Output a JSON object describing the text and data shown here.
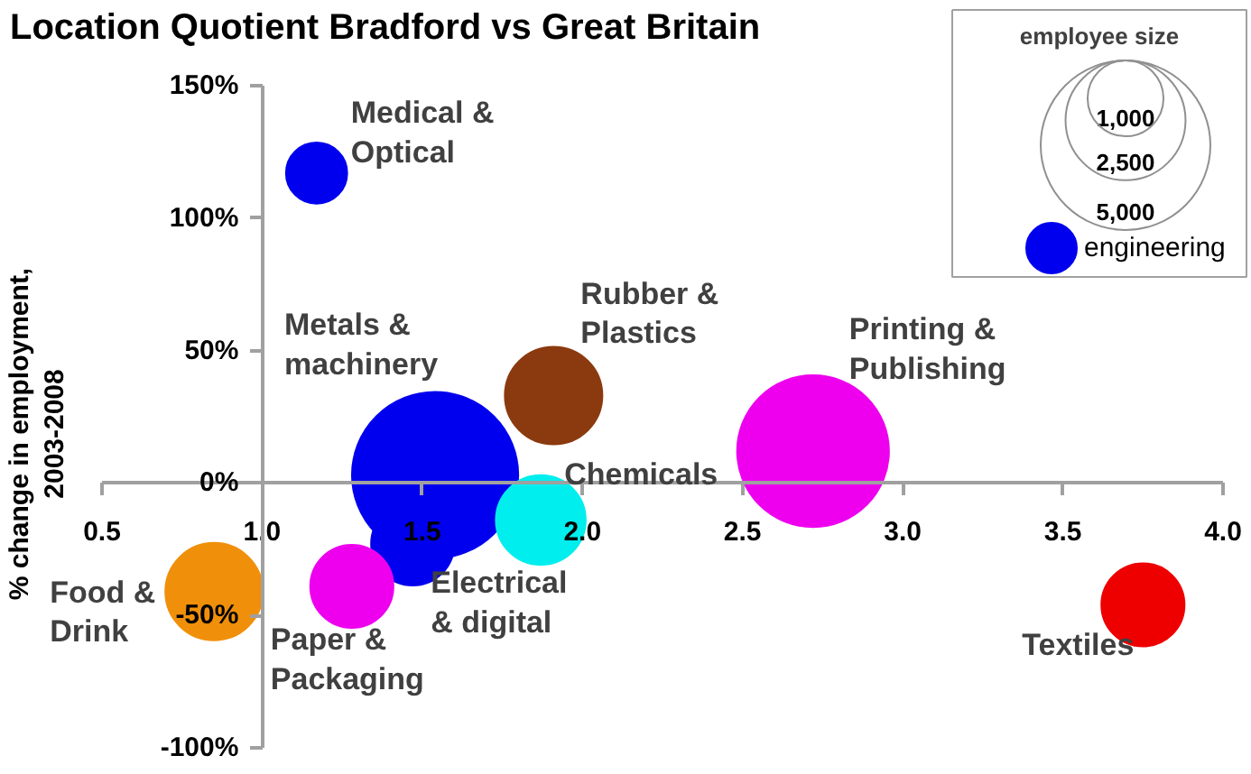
{
  "chart_data": {
    "type": "bubble",
    "title": "Location Quotient Bradford vs Great Britain",
    "ylabel": "% change in employment,\n2003-2008",
    "xlim": [
      0.5,
      4.0
    ],
    "xticks": [
      {
        "value": 0.5,
        "label": "0.5"
      },
      {
        "value": 1.0,
        "label": "1.0"
      },
      {
        "value": 1.5,
        "label": "1.5"
      },
      {
        "value": 2.0,
        "label": "2.0"
      },
      {
        "value": 2.5,
        "label": "2.5"
      },
      {
        "value": 3.0,
        "label": "3.0"
      },
      {
        "value": 3.5,
        "label": "3.5"
      },
      {
        "value": 4.0,
        "label": "4.0"
      }
    ],
    "ylim": [
      -100,
      150
    ],
    "yticks": [
      {
        "value": -100,
        "label": "-100%"
      },
      {
        "value": -50,
        "label": "-50%"
      },
      {
        "value": 0,
        "label": "0%"
      },
      {
        "value": 50,
        "label": "50%"
      },
      {
        "value": 100,
        "label": "100%"
      },
      {
        "value": 150,
        "label": "150%"
      }
    ],
    "legend_title": "employee size",
    "size_legend": [
      {
        "value": 1000,
        "label": "1,000"
      },
      {
        "value": 2500,
        "label": "2,500"
      },
      {
        "value": 5000,
        "label": "5,000"
      }
    ],
    "legend": "top right",
    "grid": false,
    "series": [
      {
        "name": "engineering",
        "color": "#0000ee",
        "x": [
          1.17,
          1.54,
          1.47
        ],
        "values": [
          117,
          3,
          -23
        ],
        "sizes": [
          650,
          4800,
          1200
        ]
      },
      {
        "colors": [
          "#8b3a0f",
          "#ee00ee",
          "#00eeee",
          "#ee00ee",
          "#f0900a",
          "#ee0000"
        ],
        "x": [
          1.91,
          2.72,
          1.87,
          1.28,
          0.85,
          3.75
        ],
        "values": [
          33,
          12,
          -14,
          -39,
          -41,
          -46
        ],
        "sizes": [
          1650,
          4000,
          1400,
          1200,
          1650,
          1200
        ]
      }
    ],
    "annotations": [
      {
        "text": "Medical &\nOptical",
        "x": 1.17,
        "y": 117
      },
      "Metals &\nmachinery",
      {
        "text": "Electrical\n& digital",
        "x": 1.47,
        "y": -23
      },
      {
        "text": "Rubber &\nPlastics",
        "x": 1.91,
        "y": 33
      },
      {
        "text": "Printing &\nPublishing",
        "x": 2.72,
        "y": 12
      },
      {
        "text": "Chemicals",
        "x": 1.87,
        "y": -14
      },
      {
        "text": "Paper &\nPackaging",
        "x": 1.28,
        "y": -39
      },
      {
        "text": "Food &\nDrink",
        "x": 0.85,
        "y": -41
      },
      {
        "text": "Textiles",
        "x": 3.75,
        "y": -46
      }
    ]
  }
}
